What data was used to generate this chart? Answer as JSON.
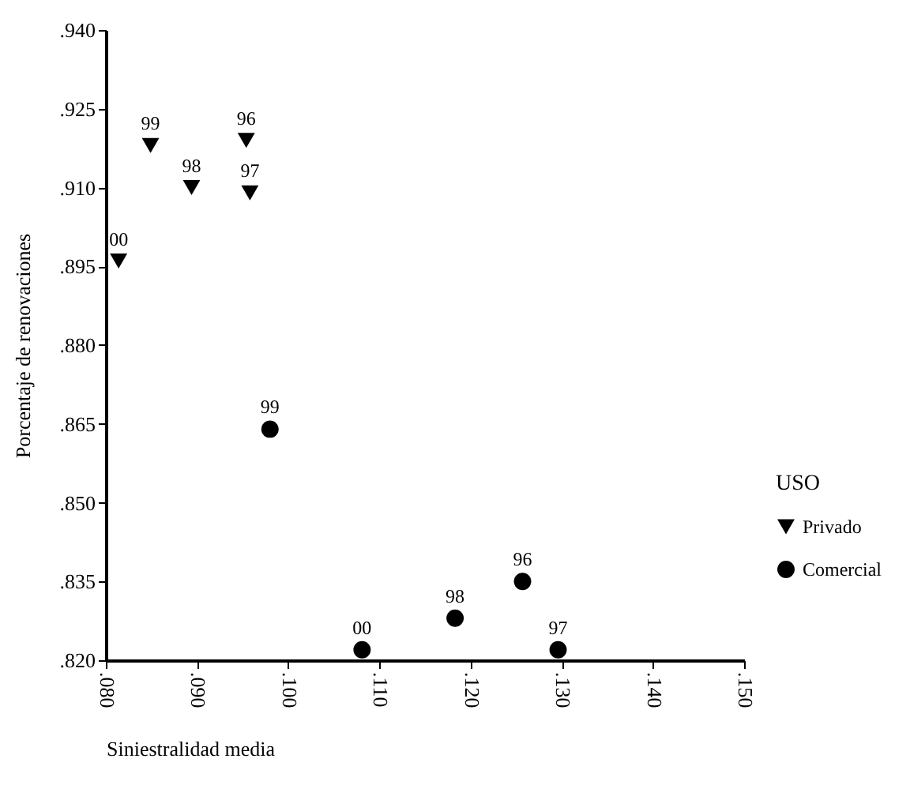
{
  "chart_data": {
    "type": "scatter",
    "xlabel": "Siniestralidad media",
    "ylabel": "Porcentaje de renovaciones",
    "legend_title": "USO",
    "legend": "right",
    "grid": false,
    "xlim": [
      0.08,
      0.15
    ],
    "xticks": [
      {
        "value": 0.08,
        "label": ".080"
      },
      {
        "value": 0.09,
        "label": ".090"
      },
      {
        "value": 0.1,
        "label": ".100"
      },
      {
        "value": 0.11,
        "label": ".110"
      },
      {
        "value": 0.12,
        "label": ".120"
      },
      {
        "value": 0.13,
        "label": ".130"
      },
      {
        "value": 0.14,
        "label": ".140"
      },
      {
        "value": 0.15,
        "label": ".150"
      }
    ],
    "ylim": [
      0.82,
      0.94
    ],
    "yticks": [
      {
        "value": 0.82,
        "label": ".820"
      },
      {
        "value": 0.835,
        "label": ".835"
      },
      {
        "value": 0.85,
        "label": ".850"
      },
      {
        "value": 0.865,
        "label": ".865"
      },
      {
        "value": 0.88,
        "label": ".880"
      },
      {
        "value": 0.895,
        "label": ".895"
      },
      {
        "value": 0.91,
        "label": ".910"
      },
      {
        "value": 0.925,
        "label": ".925"
      },
      {
        "value": 0.94,
        "label": ".940"
      }
    ],
    "series": [
      {
        "name": "Privado",
        "color": "#000000",
        "marker": "triangle",
        "x": [
          0.0814,
          0.0849,
          0.0894,
          0.0954,
          0.0958
        ],
        "values": [
          0.896,
          0.918,
          0.91,
          0.919,
          0.909
        ]
      },
      {
        "name": "Comercial",
        "color": "#000000",
        "marker": "circle",
        "x": [
          0.098,
          0.1081,
          0.1183,
          0.1257,
          0.1296
        ],
        "values": [
          0.864,
          0.822,
          0.828,
          0.835,
          0.822
        ]
      }
    ],
    "annotations": [
      {
        "text": "00",
        "x": 0.0814,
        "y": 0.896
      },
      {
        "text": "99",
        "x": 0.0849,
        "y": 0.918
      },
      {
        "text": "98",
        "x": 0.0894,
        "y": 0.91
      },
      {
        "text": "96",
        "x": 0.0954,
        "y": 0.919
      },
      {
        "text": "97",
        "x": 0.0958,
        "y": 0.909
      },
      {
        "text": "99",
        "x": 0.098,
        "y": 0.864
      },
      {
        "text": "00",
        "x": 0.1081,
        "y": 0.822
      },
      {
        "text": "98",
        "x": 0.1183,
        "y": 0.828
      },
      {
        "text": "96",
        "x": 0.1257,
        "y": 0.835
      },
      {
        "text": "97",
        "x": 0.1296,
        "y": 0.822
      }
    ]
  }
}
